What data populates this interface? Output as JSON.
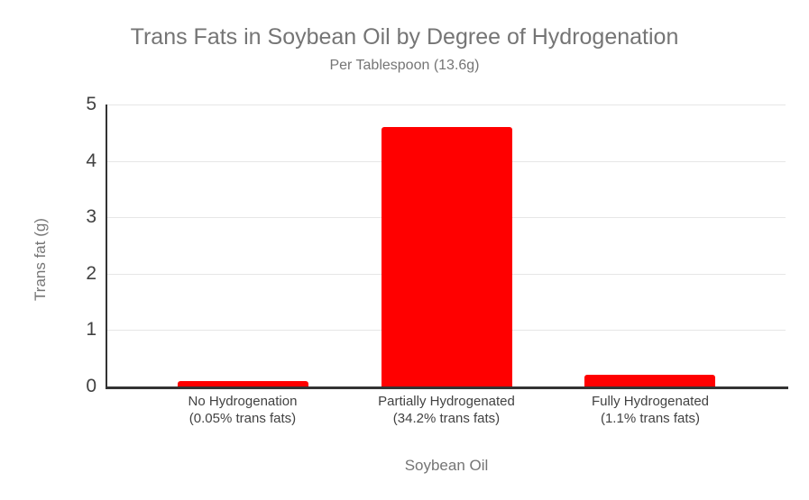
{
  "chart_data": {
    "type": "bar",
    "title": "Trans Fats in Soybean Oil by Degree of Hydrogenation",
    "subtitle": "Per Tablespoon (13.6g)",
    "xlabel": "Soybean Oil",
    "ylabel": "Trans fat (g)",
    "categories": [
      "No Hydrogenation",
      "Partially Hydrogenated",
      "Fully Hydrogenated"
    ],
    "category_sublabels": [
      "(0.05% trans fats)",
      "(34.2% trans fats)",
      "(1.1% trans fats)"
    ],
    "values": [
      0.1,
      4.6,
      0.2
    ],
    "ylim": [
      0,
      5
    ],
    "yticks": [
      0,
      1,
      2,
      3,
      4,
      5
    ],
    "grid": true,
    "legend_position": "none",
    "bar_color": "#ff0000"
  },
  "colors": {
    "title": "#757575",
    "axis_title": "#757575",
    "tick_label": "#424242",
    "category_label": "#424242",
    "gridline": "#e6e6e6",
    "axis_line": "#333333",
    "bar": "#ff0000",
    "background": "#ffffff"
  }
}
